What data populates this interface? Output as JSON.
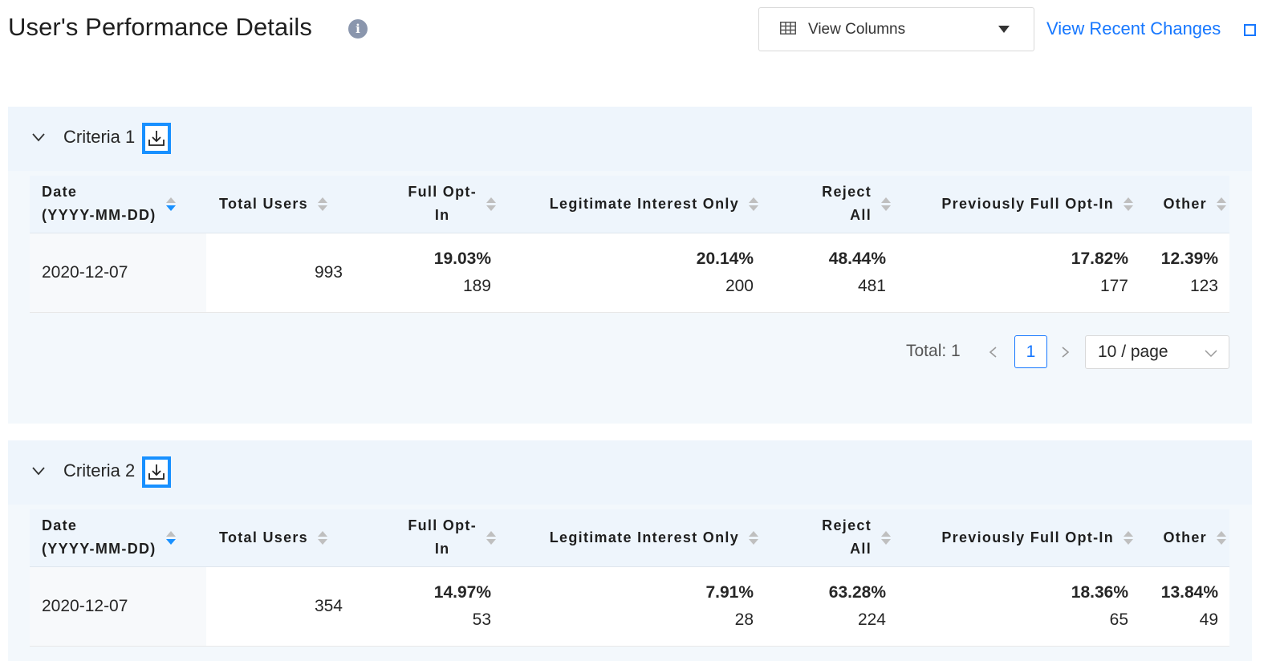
{
  "header": {
    "title": "User's Performance Details",
    "info_glyph": "i",
    "view_columns_label": "View Columns",
    "recent_changes_label": "View Recent Changes"
  },
  "columns": [
    {
      "label": "Date (YYYY-MM-DD)",
      "lines": [
        "Date",
        "(YYYY-MM-DD)"
      ],
      "sort": "descending"
    },
    {
      "label": "Total Users",
      "lines": [
        "Total Users"
      ],
      "sort": "none"
    },
    {
      "label": "Full Opt-In",
      "lines": [
        "Full Opt-",
        "In"
      ],
      "sort": "none"
    },
    {
      "label": "Legitimate Interest Only",
      "lines": [
        "Legitimate Interest Only"
      ],
      "sort": "none"
    },
    {
      "label": "Reject All",
      "lines": [
        "Reject",
        "All"
      ],
      "sort": "none"
    },
    {
      "label": "Previously Full Opt-In",
      "lines": [
        "Previously Full Opt-In"
      ],
      "sort": "none"
    },
    {
      "label": "Other",
      "lines": [
        "Other"
      ],
      "sort": "none"
    }
  ],
  "sections": [
    {
      "title": "Criteria 1",
      "rows": [
        {
          "date": "2020-12-07",
          "total_users": "993",
          "full_opt_in": {
            "pct": "19.03%",
            "count": "189"
          },
          "legitimate_interest_only": {
            "pct": "20.14%",
            "count": "200"
          },
          "reject_all": {
            "pct": "48.44%",
            "count": "481"
          },
          "previously_full_opt_in": {
            "pct": "17.82%",
            "count": "177"
          },
          "other": {
            "pct": "12.39%",
            "count": "123"
          }
        }
      ],
      "pagination": {
        "total_label": "Total: 1",
        "current_page": "1",
        "page_size": "10 / page"
      }
    },
    {
      "title": "Criteria 2",
      "rows": [
        {
          "date": "2020-12-07",
          "total_users": "354",
          "full_opt_in": {
            "pct": "14.97%",
            "count": "53"
          },
          "legitimate_interest_only": {
            "pct": "7.91%",
            "count": "28"
          },
          "reject_all": {
            "pct": "63.28%",
            "count": "224"
          },
          "previously_full_opt_in": {
            "pct": "18.36%",
            "count": "65"
          },
          "other": {
            "pct": "13.84%",
            "count": "49"
          }
        }
      ]
    }
  ],
  "colors": {
    "accent": "#1677ff",
    "section_bg": "#f3f8fc",
    "header_bg": "#eef5fc",
    "info_icon": "#8a96ad"
  },
  "icons": [
    "info-icon",
    "table-icon",
    "caret-down-icon",
    "external-link-icon",
    "chevron-down-icon",
    "download-icon",
    "sort-icon",
    "chevron-left-icon",
    "chevron-right-icon"
  ]
}
